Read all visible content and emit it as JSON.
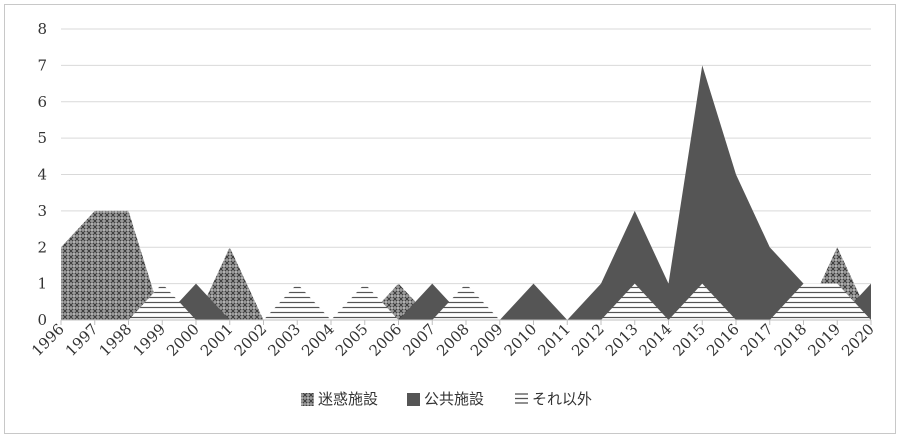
{
  "chart_data": {
    "type": "area",
    "categories": [
      "1996",
      "1997",
      "1998",
      "1999",
      "2000",
      "2001",
      "2002",
      "2003",
      "2004",
      "2005",
      "2006",
      "2007",
      "2008",
      "2009",
      "2010",
      "2011",
      "2012",
      "2013",
      "2014",
      "2015",
      "2016",
      "2017",
      "2018",
      "2019",
      "2020"
    ],
    "series": [
      {
        "name": "迷惑施設",
        "pattern": "crosshatch",
        "values": [
          2,
          3,
          3,
          0,
          0,
          2,
          0,
          0,
          0,
          0,
          1,
          0,
          0,
          0,
          0,
          0,
          0,
          0,
          0,
          0,
          0,
          0,
          0,
          2,
          0
        ]
      },
      {
        "name": "公共施設",
        "pattern": "solid",
        "values": [
          0,
          0,
          0,
          0,
          1,
          0,
          0,
          0,
          0,
          0,
          0,
          1,
          0,
          0,
          1,
          0,
          1,
          3,
          1,
          7,
          4,
          2,
          1,
          0,
          1
        ]
      },
      {
        "name": "それ以外",
        "pattern": "horizontal-lines",
        "values": [
          0,
          0,
          0,
          1,
          0,
          0,
          0,
          1,
          0,
          1,
          0,
          0,
          1,
          0,
          0,
          0,
          0,
          1,
          0,
          1,
          0,
          0,
          1,
          1,
          0
        ]
      }
    ],
    "yticks": [
      "0",
      "1",
      "2",
      "3",
      "4",
      "5",
      "6",
      "7",
      "8"
    ],
    "ylim": [
      0,
      8
    ],
    "grid": true,
    "legend_position": "bottom",
    "colors": {
      "dark": "#555555",
      "grid": "#d9d9d9",
      "axis": "#bfbfbf"
    }
  }
}
